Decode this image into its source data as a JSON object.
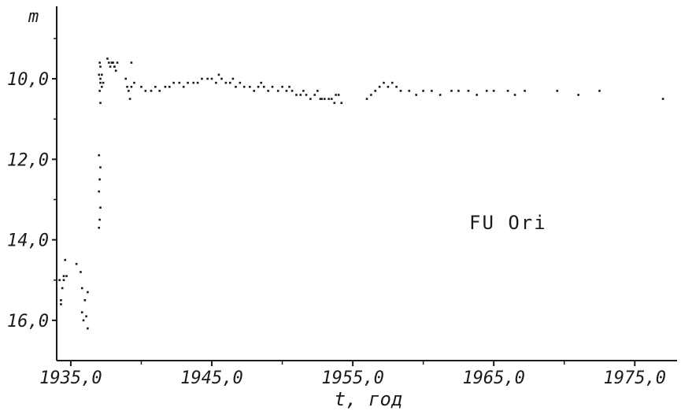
{
  "chart_data": {
    "type": "scatter",
    "xlabel": "t, год",
    "ylabel": "m",
    "annotation": "FU Ori",
    "xlim": [
      1934.0,
      1978.0
    ],
    "ylim": [
      17.0,
      8.2
    ],
    "y_inverted": true,
    "grid": false,
    "xticks": [
      1935,
      1945,
      1955,
      1965,
      1975
    ],
    "xtick_labels": [
      "1935,0",
      "1945,0",
      "1955,0",
      "1965,0",
      "1975,0"
    ],
    "yticks": [
      10,
      12,
      14,
      16
    ],
    "ytick_labels": [
      "10,0",
      "12,0",
      "14,0",
      "16,0"
    ],
    "series": [
      {
        "x": [
          1934.2,
          1934.3,
          1934.4,
          1934.5,
          1934.6,
          1934.3,
          1934.5,
          1934.7,
          1935.4,
          1935.7,
          1935.8,
          1936.0,
          1936.1,
          1936.2,
          1935.9,
          1935.8,
          1936.2,
          1937.0,
          1937.05,
          1937.1,
          1937.0,
          1937.05,
          1937.1,
          1937.0,
          1937.1,
          1937.05,
          1937.1,
          1937.0,
          1937.1,
          1937.05,
          1937.1,
          1937.2,
          1937.2,
          1937.3,
          1937.6,
          1937.7,
          1937.8,
          1937.9,
          1938.0,
          1938.1,
          1938.2,
          1938.3,
          1938.1,
          1938.9,
          1939.0,
          1939.1,
          1939.2,
          1939.3,
          1939.5,
          1939.3,
          1940.0,
          1940.3,
          1940.7,
          1941.0,
          1941.3,
          1941.7,
          1942.0,
          1942.3,
          1942.7,
          1943.0,
          1943.3,
          1943.7,
          1944.0,
          1944.3,
          1944.7,
          1945.0,
          1945.3,
          1945.7,
          1946.0,
          1946.3,
          1946.7,
          1947.0,
          1947.3,
          1947.7,
          1948.0,
          1948.3,
          1948.7,
          1949.0,
          1949.3,
          1949.7,
          1950.0,
          1950.3,
          1950.7,
          1951.0,
          1951.3,
          1951.7,
          1952.0,
          1952.3,
          1952.7,
          1953.0,
          1953.3,
          1953.7,
          1954.0,
          1945.5,
          1946.5,
          1948.5,
          1950.5,
          1951.5,
          1952.5,
          1953.5,
          1954.2,
          1953.8,
          1952.8,
          1956.0,
          1956.3,
          1956.6,
          1956.9,
          1957.2,
          1957.5,
          1957.8,
          1958.1,
          1958.4,
          1959.0,
          1959.5,
          1960.0,
          1960.6,
          1961.2,
          1962.0,
          1962.5,
          1963.2,
          1963.8,
          1964.5,
          1965.0,
          1966.0,
          1966.5,
          1967.2,
          1969.5,
          1971.0,
          1972.5,
          1977.0
        ],
        "y": [
          15.0,
          15.5,
          15.2,
          14.9,
          14.5,
          15.6,
          15.0,
          14.9,
          14.6,
          14.8,
          15.2,
          15.5,
          15.9,
          16.2,
          16.0,
          15.8,
          15.3,
          13.7,
          13.5,
          13.2,
          12.8,
          12.5,
          12.2,
          11.9,
          10.6,
          10.3,
          10.1,
          9.9,
          9.7,
          9.6,
          10.0,
          10.2,
          9.9,
          10.1,
          9.5,
          9.6,
          9.7,
          9.6,
          9.6,
          9.7,
          9.8,
          9.6,
          9.7,
          10.0,
          10.2,
          10.3,
          10.5,
          10.2,
          10.1,
          9.6,
          10.2,
          10.3,
          10.3,
          10.2,
          10.3,
          10.2,
          10.2,
          10.1,
          10.1,
          10.2,
          10.1,
          10.1,
          10.1,
          10.0,
          10.0,
          10.0,
          10.1,
          10.0,
          10.1,
          10.1,
          10.2,
          10.1,
          10.2,
          10.2,
          10.3,
          10.2,
          10.2,
          10.3,
          10.2,
          10.3,
          10.2,
          10.3,
          10.3,
          10.4,
          10.4,
          10.4,
          10.5,
          10.4,
          10.5,
          10.5,
          10.5,
          10.6,
          10.4,
          9.9,
          10.0,
          10.1,
          10.2,
          10.3,
          10.3,
          10.5,
          10.6,
          10.4,
          10.5,
          10.5,
          10.4,
          10.3,
          10.2,
          10.1,
          10.2,
          10.1,
          10.2,
          10.3,
          10.3,
          10.4,
          10.3,
          10.3,
          10.4,
          10.3,
          10.3,
          10.3,
          10.4,
          10.3,
          10.3,
          10.3,
          10.4,
          10.3,
          10.3,
          10.4,
          10.3,
          10.5
        ]
      }
    ]
  }
}
